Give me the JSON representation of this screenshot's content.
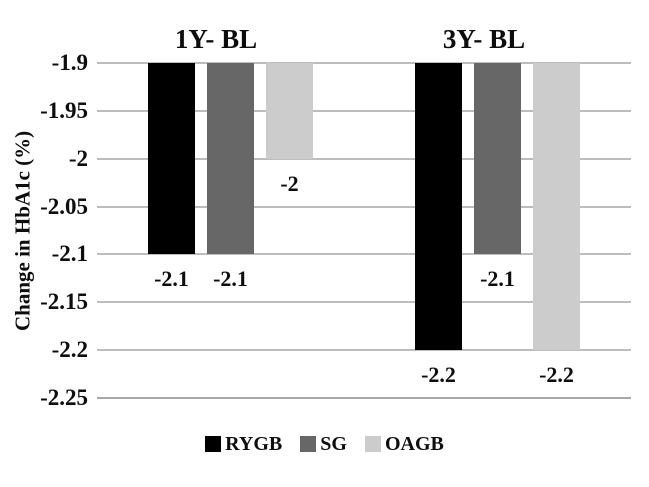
{
  "chart_data": {
    "type": "bar",
    "title": "",
    "ylabel": "Change in HbA1c (%)",
    "xlabel": "",
    "categories": [
      "1Y- BL",
      "3Y- BL"
    ],
    "series": [
      {
        "name": "RYGB",
        "color": "#000000",
        "values": [
          -2.1,
          -2.2
        ],
        "value_labels": [
          "-2.1",
          "-2.2"
        ]
      },
      {
        "name": "SG",
        "color": "#676767",
        "values": [
          -2.1,
          -2.1
        ],
        "value_labels": [
          "-2.1",
          "-2.1"
        ]
      },
      {
        "name": "OAGB",
        "color": "#cccccc",
        "values": [
          -2.0,
          -2.2
        ],
        "value_labels": [
          "-2",
          "-2.2"
        ]
      }
    ],
    "baseline": -1.9,
    "ylim": [
      -1.9,
      -2.25
    ],
    "yticks": [
      -1.9,
      -1.95,
      -2.0,
      -2.05,
      -2.1,
      -2.15,
      -2.2,
      -2.25
    ],
    "ytick_labels": [
      "-1.9",
      "-1.95",
      "-2",
      "-2.05",
      "-2.1",
      "-2.15",
      "-2.2",
      "-2.25"
    ],
    "grid": true,
    "legend_position": "bottom",
    "value_labels_visible": true
  },
  "colors": {
    "background": "#ffffff",
    "gridline": "#bdbdbd",
    "bottom_gridline": "#a9a9a9",
    "text": "#0d0d0d"
  }
}
